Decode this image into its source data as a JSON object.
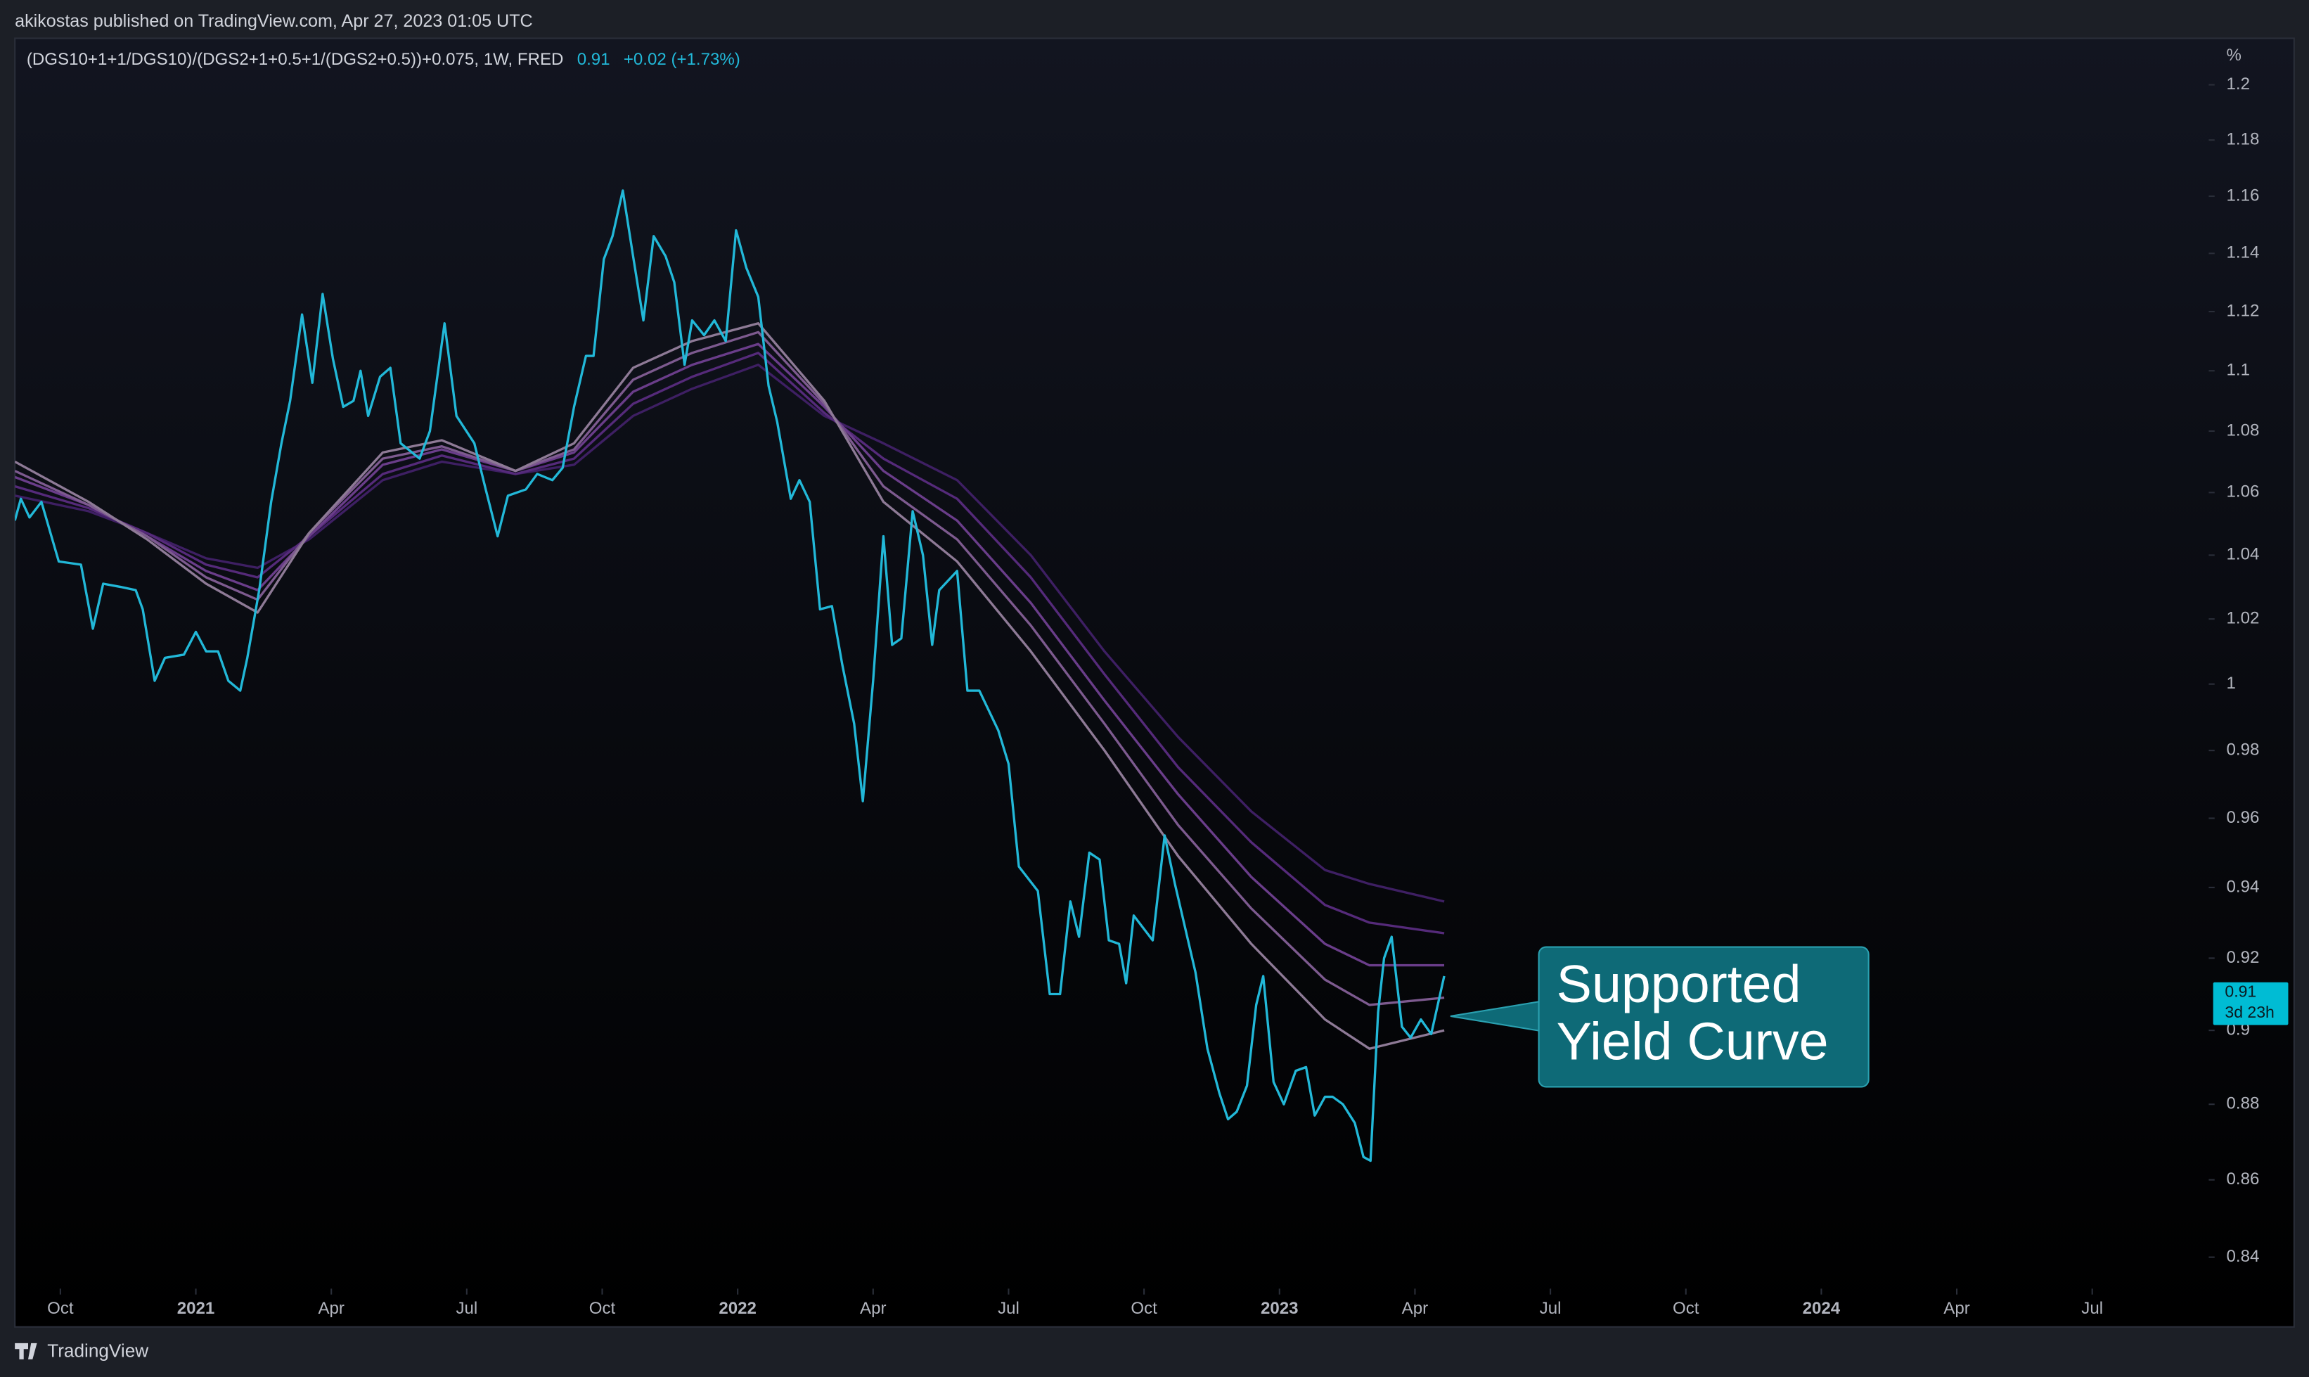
{
  "header": {
    "publisher": "akikostas published on TradingView.com, Apr 27, 2023 01:05 UTC"
  },
  "footer": {
    "brand": "TradingView"
  },
  "chart_data": {
    "type": "line",
    "log_scale": true,
    "legend": {
      "symbol": "(DGS10+1+1/DGS10)/(DGS2+1+0.5+1/(DGS2+0.5))+0.075, 1W, FRED",
      "last": "0.91",
      "change": "+0.02 (+1.73%)"
    },
    "y_unit": "%",
    "price_tag": {
      "value": 0.91,
      "label": "0.91",
      "countdown": "3d 23h",
      "color": "#00bcd4"
    },
    "annotation": {
      "lines": [
        "Supported",
        "Yield Curve"
      ],
      "color": "#0e6a77"
    },
    "xlim": [
      2020.666,
      2024.715
    ],
    "xticks": [
      {
        "value": 2020.75,
        "label": "Oct"
      },
      2021,
      {
        "value": 2021.25,
        "label": "Apr"
      },
      {
        "value": 2021.5,
        "label": "Jul"
      },
      {
        "value": 2021.75,
        "label": "Oct"
      },
      2022,
      {
        "value": 2022.25,
        "label": "Apr"
      },
      {
        "value": 2022.5,
        "label": "Jul"
      },
      {
        "value": 2022.75,
        "label": "Oct"
      },
      2023,
      {
        "value": 2023.25,
        "label": "Apr"
      },
      {
        "value": 2023.5,
        "label": "Jul"
      },
      {
        "value": 2023.75,
        "label": "Oct"
      },
      2024,
      {
        "value": 2024.25,
        "label": "Apr"
      },
      {
        "value": 2024.5,
        "label": "Jul"
      }
    ],
    "ylim": [
      0.832,
      1.216
    ],
    "yticks": [
      0.84,
      0.86,
      0.88,
      0.9,
      0.92,
      0.94,
      0.96,
      0.98,
      1,
      1.02,
      1.04,
      1.06,
      1.08,
      1.1,
      1.12,
      1.14,
      1.16,
      1.18,
      1.2
    ],
    "series": [
      {
        "color": "#3e1f63",
        "x": [
          2020.666,
          2020.802,
          2020.91,
          2021.019,
          2021.114,
          2021.209,
          2021.345,
          2021.454,
          2021.59,
          2021.698,
          2021.807,
          2021.916,
          2022.038,
          2022.16,
          2022.269,
          2022.405,
          2022.541,
          2022.677,
          2022.813,
          2022.948,
          2023.084,
          2023.166,
          2023.304
        ],
        "values": [
          1.059,
          1.054,
          1.047,
          1.039,
          1.036,
          1.045,
          1.064,
          1.07,
          1.066,
          1.069,
          1.085,
          1.094,
          1.102,
          1.085,
          1.076,
          1.064,
          1.04,
          1.01,
          0.984,
          0.962,
          0.945,
          0.941,
          0.936
        ]
      },
      {
        "color": "#552a7a",
        "x": [
          2020.666,
          2020.802,
          2020.91,
          2021.019,
          2021.114,
          2021.209,
          2021.345,
          2021.454,
          2021.59,
          2021.698,
          2021.807,
          2021.916,
          2022.038,
          2022.16,
          2022.269,
          2022.405,
          2022.541,
          2022.677,
          2022.813,
          2022.948,
          2023.084,
          2023.166,
          2023.304
        ],
        "values": [
          1.062,
          1.055,
          1.047,
          1.037,
          1.033,
          1.046,
          1.066,
          1.072,
          1.066,
          1.071,
          1.089,
          1.098,
          1.106,
          1.086,
          1.071,
          1.058,
          1.033,
          1.003,
          0.975,
          0.953,
          0.935,
          0.93,
          0.927
        ]
      },
      {
        "color": "#6a3d8a",
        "x": [
          2020.666,
          2020.802,
          2020.91,
          2021.019,
          2021.114,
          2021.209,
          2021.345,
          2021.454,
          2021.59,
          2021.698,
          2021.807,
          2021.916,
          2022.038,
          2022.16,
          2022.269,
          2022.405,
          2022.541,
          2022.677,
          2022.813,
          2022.948,
          2023.084,
          2023.166,
          2023.304
        ],
        "values": [
          1.065,
          1.056,
          1.046,
          1.035,
          1.029,
          1.046,
          1.069,
          1.074,
          1.067,
          1.073,
          1.093,
          1.102,
          1.109,
          1.088,
          1.067,
          1.051,
          1.025,
          0.995,
          0.967,
          0.943,
          0.924,
          0.918,
          0.918
        ]
      },
      {
        "color": "#7d5a8f",
        "x": [
          2020.666,
          2020.802,
          2020.91,
          2021.019,
          2021.114,
          2021.209,
          2021.345,
          2021.454,
          2021.59,
          2021.698,
          2021.807,
          2021.916,
          2022.038,
          2022.16,
          2022.269,
          2022.405,
          2022.541,
          2022.677,
          2022.813,
          2022.948,
          2023.084,
          2023.166,
          2023.304
        ],
        "values": [
          1.067,
          1.056,
          1.046,
          1.033,
          1.026,
          1.047,
          1.071,
          1.075,
          1.067,
          1.074,
          1.097,
          1.106,
          1.113,
          1.089,
          1.062,
          1.045,
          1.018,
          0.988,
          0.958,
          0.934,
          0.914,
          0.907,
          0.909
        ]
      },
      {
        "color": "#8e7a96",
        "x": [
          2020.666,
          2020.802,
          2020.91,
          2021.019,
          2021.114,
          2021.209,
          2021.345,
          2021.454,
          2021.59,
          2021.698,
          2021.807,
          2021.916,
          2022.038,
          2022.16,
          2022.269,
          2022.405,
          2022.541,
          2022.677,
          2022.813,
          2022.948,
          2023.084,
          2023.166,
          2023.304
        ],
        "values": [
          1.07,
          1.057,
          1.045,
          1.031,
          1.022,
          1.047,
          1.073,
          1.077,
          1.067,
          1.076,
          1.101,
          1.11,
          1.116,
          1.09,
          1.057,
          1.038,
          1.01,
          0.98,
          0.949,
          0.924,
          0.903,
          0.895,
          0.9
        ]
      },
      {
        "color": "#22b8d8",
        "x": [
          2020.666,
          2020.677,
          2020.693,
          2020.715,
          2020.747,
          2020.788,
          2020.81,
          2020.829,
          2020.861,
          2020.889,
          2020.902,
          2020.924,
          2020.943,
          2020.978,
          2021.0,
          2021.019,
          2021.041,
          2021.06,
          2021.082,
          2021.095,
          2021.117,
          2021.139,
          2021.158,
          2021.174,
          2021.196,
          2021.215,
          2021.234,
          2021.253,
          2021.272,
          2021.291,
          2021.304,
          2021.318,
          2021.34,
          2021.359,
          2021.378,
          2021.413,
          2021.432,
          2021.459,
          2021.481,
          2021.514,
          2021.535,
          2021.557,
          2021.576,
          2021.609,
          2021.63,
          2021.658,
          2021.677,
          2021.698,
          2021.72,
          2021.734,
          2021.753,
          2021.769,
          2021.788,
          2021.807,
          2021.826,
          2021.845,
          2021.867,
          2021.883,
          2021.902,
          2021.916,
          2021.938,
          2021.957,
          2021.978,
          2021.997,
          2022.016,
          2022.038,
          2022.057,
          2022.073,
          2022.098,
          2022.114,
          2022.133,
          2022.152,
          2022.174,
          2022.193,
          2022.215,
          2022.231,
          2022.25,
          2022.269,
          2022.285,
          2022.302,
          2022.323,
          2022.342,
          2022.359,
          2022.372,
          2022.405,
          2022.424,
          2022.446,
          2022.481,
          2022.5,
          2022.519,
          2022.554,
          2022.576,
          2022.595,
          2022.614,
          2022.63,
          2022.649,
          2022.668,
          2022.685,
          2022.704,
          2022.717,
          2022.731,
          2022.766,
          2022.788,
          2022.807,
          2022.845,
          2022.867,
          2022.889,
          2022.905,
          2022.921,
          2022.94,
          2022.957,
          2022.97,
          2022.989,
          2023.008,
          2023.03,
          2023.049,
          2023.065,
          2023.084,
          2023.098,
          2023.117,
          2023.139,
          2023.155,
          2023.168,
          2023.182,
          2023.193,
          2023.207,
          2023.226,
          2023.242,
          2023.261,
          2023.28,
          2023.304
        ],
        "values": [
          1.051,
          1.058,
          1.052,
          1.057,
          1.038,
          1.037,
          1.017,
          1.031,
          1.03,
          1.029,
          1.023,
          1.001,
          1.008,
          1.009,
          1.016,
          1.01,
          1.01,
          1.001,
          0.998,
          1.008,
          1.029,
          1.057,
          1.076,
          1.09,
          1.119,
          1.096,
          1.126,
          1.104,
          1.088,
          1.09,
          1.1,
          1.085,
          1.098,
          1.101,
          1.076,
          1.071,
          1.08,
          1.116,
          1.085,
          1.076,
          1.061,
          1.046,
          1.059,
          1.061,
          1.066,
          1.064,
          1.068,
          1.088,
          1.105,
          1.105,
          1.138,
          1.146,
          1.162,
          1.139,
          1.117,
          1.146,
          1.139,
          1.13,
          1.102,
          1.117,
          1.112,
          1.117,
          1.11,
          1.148,
          1.135,
          1.125,
          1.095,
          1.083,
          1.058,
          1.064,
          1.057,
          1.023,
          1.024,
          1.006,
          0.988,
          0.965,
          1.001,
          1.046,
          1.012,
          1.014,
          1.054,
          1.04,
          1.012,
          1.029,
          1.035,
          0.998,
          0.998,
          0.986,
          0.976,
          0.946,
          0.939,
          0.91,
          0.91,
          0.936,
          0.926,
          0.95,
          0.948,
          0.925,
          0.924,
          0.913,
          0.932,
          0.925,
          0.955,
          0.941,
          0.916,
          0.895,
          0.883,
          0.876,
          0.878,
          0.885,
          0.907,
          0.915,
          0.886,
          0.88,
          0.889,
          0.89,
          0.877,
          0.882,
          0.882,
          0.88,
          0.875,
          0.866,
          0.865,
          0.905,
          0.92,
          0.926,
          0.901,
          0.898,
          0.903,
          0.899,
          0.915
        ]
      }
    ]
  }
}
